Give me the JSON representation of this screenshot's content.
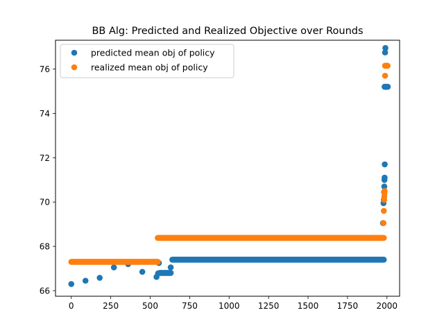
{
  "chart_data": {
    "type": "scatter",
    "title": "BB Alg: Predicted and Realized Objective over Rounds",
    "xlabel": "",
    "ylabel": "",
    "xlim": [
      -100,
      2080
    ],
    "ylim": [
      65.75,
      77.3
    ],
    "x_ticks": [
      0,
      250,
      500,
      750,
      1000,
      1250,
      1500,
      1750,
      2000
    ],
    "x_tick_labels": [
      "0",
      "250",
      "500",
      "750",
      "1000",
      "1250",
      "1500",
      "1750",
      "2000"
    ],
    "y_ticks": [
      66,
      68,
      70,
      72,
      74,
      76
    ],
    "y_tick_labels": [
      "66",
      "68",
      "70",
      "72",
      "74",
      "76"
    ],
    "grid": false,
    "legend_position": "upper-left",
    "series": [
      {
        "name": "predicted mean obj of policy",
        "color": "#1f77b4",
        "points": [
          [
            0,
            66.3
          ],
          [
            90,
            66.45
          ],
          [
            180,
            66.58
          ],
          [
            270,
            67.05
          ],
          [
            360,
            67.2
          ],
          [
            450,
            66.85
          ],
          [
            540,
            66.62
          ],
          [
            550,
            66.78
          ],
          [
            555,
            67.25
          ],
          {
            "x_start": 560,
            "x_end": 630,
            "y": 66.8
          },
          [
            630,
            67.05
          ],
          {
            "x_start": 640,
            "x_end": 1980,
            "y": 67.4
          },
          [
            1975,
            69.05
          ],
          [
            1978,
            69.95
          ],
          [
            1980,
            70.1
          ],
          [
            1982,
            70.45
          ],
          [
            1983,
            70.7
          ],
          [
            1984,
            71.0
          ],
          [
            1985,
            71.1
          ],
          [
            1986,
            71.7
          ],
          [
            1985,
            75.2
          ],
          [
            1990,
            75.2
          ],
          [
            1995,
            75.2
          ],
          [
            2000,
            75.2
          ],
          [
            2005,
            75.2
          ],
          [
            1988,
            76.75
          ],
          [
            1990,
            76.95
          ]
        ]
      },
      {
        "name": "realized mean obj of policy",
        "color": "#ff7f0e",
        "points": [
          {
            "x_start": 0,
            "x_end": 548,
            "y": 67.3
          },
          {
            "x_start": 548,
            "x_end": 1980,
            "y": 68.38
          },
          [
            1978,
            69.05
          ],
          [
            1980,
            69.6
          ],
          [
            1982,
            70.1
          ],
          [
            1983,
            70.25
          ],
          [
            1984,
            70.4
          ],
          [
            1985,
            70.5
          ],
          [
            1988,
            75.7
          ],
          [
            1988,
            76.15
          ],
          [
            1992,
            76.15
          ],
          [
            1996,
            76.15
          ],
          [
            2000,
            76.15
          ],
          [
            2004,
            76.15
          ]
        ]
      }
    ]
  }
}
